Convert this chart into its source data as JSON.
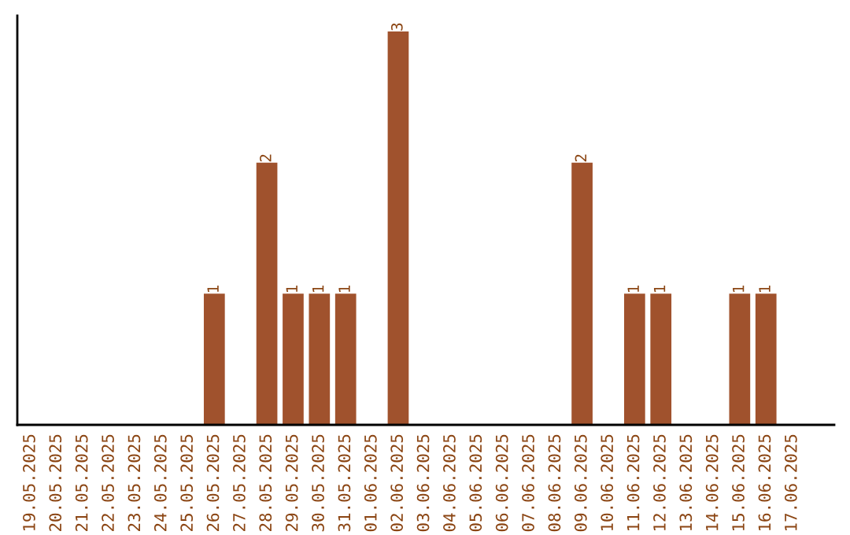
{
  "chart_data": {
    "type": "bar",
    "categories": [
      "19.05.2025",
      "20.05.2025",
      "21.05.2025",
      "22.05.2025",
      "23.05.2025",
      "24.05.2025",
      "25.05.2025",
      "26.05.2025",
      "27.05.2025",
      "28.05.2025",
      "29.05.2025",
      "30.05.2025",
      "31.05.2025",
      "01.06.2025",
      "02.06.2025",
      "03.06.2025",
      "04.06.2025",
      "05.06.2025",
      "06.06.2025",
      "07.06.2025",
      "08.06.2025",
      "09.06.2025",
      "10.06.2025",
      "11.06.2025",
      "12.06.2025",
      "13.06.2025",
      "14.06.2025",
      "15.06.2025",
      "16.06.2025",
      "17.06.2025"
    ],
    "values": [
      null,
      null,
      null,
      null,
      null,
      null,
      null,
      1,
      null,
      2,
      1,
      1,
      1,
      null,
      3,
      null,
      null,
      null,
      null,
      null,
      null,
      2,
      null,
      1,
      1,
      null,
      null,
      1,
      1,
      null
    ],
    "data_labels": true,
    "color": "#a0522d",
    "tick_labels": "x",
    "grid": false,
    "legend": false
  }
}
